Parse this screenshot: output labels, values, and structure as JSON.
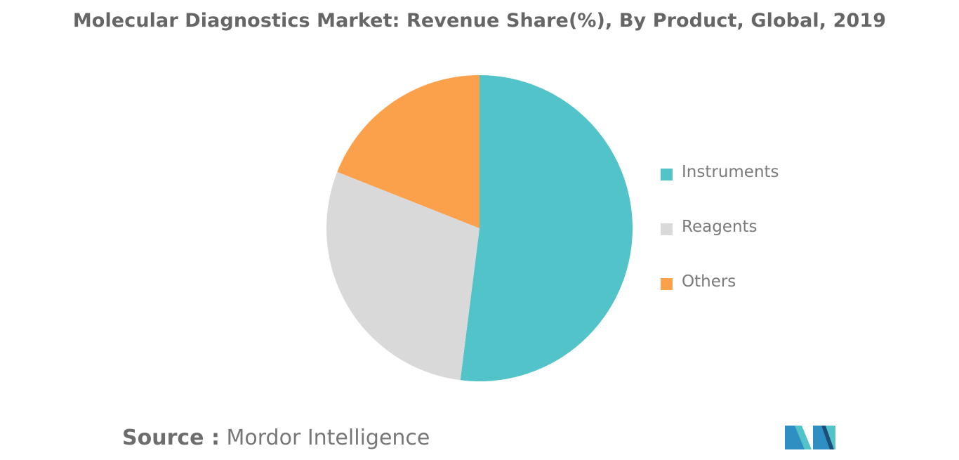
{
  "chart_data": {
    "type": "pie",
    "title": "Molecular Diagnostics Market: Revenue Share(%), By Product, Global, 2019",
    "slices": [
      {
        "label": "Instruments",
        "value": 52,
        "color": "#52c4c9"
      },
      {
        "label": "Reagents",
        "value": 29,
        "color": "#d9d9d9"
      },
      {
        "label": "Others",
        "value": 19,
        "color": "#fba04b"
      }
    ],
    "start_angle_deg": 0,
    "direction": "clockwise",
    "legend_position": "right"
  },
  "source": {
    "key": "Source :",
    "value": "Mordor Intelligence"
  },
  "logo": {
    "colors": [
      "#2f8fc3",
      "#52c4c9",
      "#1d4e7a"
    ]
  }
}
